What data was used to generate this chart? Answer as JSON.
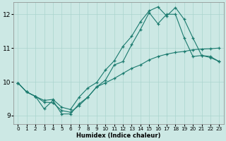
{
  "xlabel": "Humidex (Indice chaleur)",
  "xlim": [
    -0.5,
    23.5
  ],
  "ylim": [
    8.75,
    12.35
  ],
  "yticks": [
    9,
    10,
    11,
    12
  ],
  "xticks": [
    0,
    1,
    2,
    3,
    4,
    5,
    6,
    7,
    8,
    9,
    10,
    11,
    12,
    13,
    14,
    15,
    16,
    17,
    18,
    19,
    20,
    21,
    22,
    23
  ],
  "bg_color": "#cce8e4",
  "grid_color": "#aad4ce",
  "line_color": "#1a7a6e",
  "lines": [
    {
      "x": [
        0,
        1,
        2,
        3,
        4,
        5,
        6,
        7,
        8,
        9,
        10,
        11,
        12,
        13,
        14,
        15,
        16,
        17,
        18,
        19,
        20,
        21,
        22,
        23
      ],
      "y": [
        9.97,
        9.7,
        9.57,
        9.45,
        9.48,
        9.25,
        9.18,
        9.55,
        9.82,
        9.98,
        10.35,
        10.62,
        11.05,
        11.35,
        11.78,
        12.1,
        12.22,
        11.95,
        12.2,
        11.85,
        11.3,
        10.78,
        10.72,
        10.6
      ]
    },
    {
      "x": [
        0,
        1,
        2,
        3,
        4,
        5,
        6,
        7,
        8,
        9,
        10,
        11,
        12,
        13,
        14,
        15,
        16,
        17,
        18,
        19,
        20,
        21,
        22,
        23
      ],
      "y": [
        9.97,
        9.7,
        9.57,
        9.2,
        9.45,
        9.05,
        9.05,
        9.35,
        9.55,
        9.85,
        10.05,
        10.5,
        10.6,
        11.1,
        11.55,
        12.05,
        11.72,
        12.0,
        12.0,
        11.3,
        10.75,
        10.78,
        10.75,
        10.6
      ]
    },
    {
      "x": [
        0,
        1,
        2,
        3,
        4,
        5,
        6,
        7,
        8,
        9,
        10,
        11,
        12,
        13,
        14,
        15,
        16,
        17,
        18,
        19,
        20,
        21,
        22,
        23
      ],
      "y": [
        9.97,
        9.7,
        9.57,
        9.4,
        9.38,
        9.15,
        9.1,
        9.3,
        9.55,
        9.85,
        9.97,
        10.1,
        10.25,
        10.4,
        10.5,
        10.65,
        10.75,
        10.82,
        10.87,
        10.9,
        10.95,
        10.97,
        10.98,
        11.0
      ]
    }
  ]
}
